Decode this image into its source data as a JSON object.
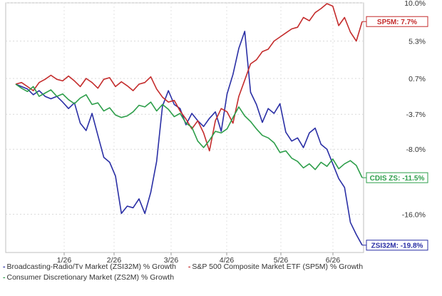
{
  "chart_data": {
    "type": "line",
    "x_tick_labels": [
      "1/26",
      "2/26",
      "3/26",
      "4/26",
      "5/26",
      "6/26"
    ],
    "y_tick_labels": [
      "10.0%",
      "5.3%",
      "0.7%",
      "-3.7%",
      "-8.0%",
      "-16.0%"
    ],
    "y_tick_values": [
      10.0,
      5.3,
      0.7,
      -3.7,
      -8.0,
      -16.0
    ],
    "ylim": [
      -20.7,
      10.0
    ],
    "grid": true,
    "legend_position": "bottom",
    "series": [
      {
        "name": "Broadcasting-Radio/Tv Market (ZSI32M) % Growth",
        "color": "#2a2fa5",
        "end_label": "ZSI32M: -19.8%",
        "points": [
          [
            0,
            0.0
          ],
          [
            1,
            -0.3
          ],
          [
            2,
            -0.6
          ],
          [
            3,
            -1.3
          ],
          [
            4,
            -0.8
          ],
          [
            5,
            -1.5
          ],
          [
            6,
            -1.8
          ],
          [
            7,
            -1.5
          ],
          [
            8,
            -2.2
          ],
          [
            9,
            -3.0
          ],
          [
            10,
            -2.3
          ],
          [
            11,
            -4.8
          ],
          [
            12,
            -5.7
          ],
          [
            13,
            -3.6
          ],
          [
            14,
            -6.3
          ],
          [
            15,
            -9.0
          ],
          [
            16,
            -9.6
          ],
          [
            17,
            -11.3
          ],
          [
            18,
            -15.9
          ],
          [
            19,
            -15.0
          ],
          [
            20,
            -15.2
          ],
          [
            21,
            -14.1
          ],
          [
            22,
            -15.9
          ],
          [
            23,
            -13.3
          ],
          [
            24,
            -9.5
          ],
          [
            25,
            -2.7
          ],
          [
            26,
            -0.8
          ],
          [
            27,
            -2.5
          ],
          [
            28,
            -3.0
          ],
          [
            29,
            -5.0
          ],
          [
            30,
            -3.6
          ],
          [
            31,
            -4.5
          ],
          [
            32,
            -5.2
          ],
          [
            33,
            -4.2
          ],
          [
            34,
            -3.4
          ],
          [
            35,
            -5.8
          ],
          [
            36,
            -1.2
          ],
          [
            37,
            1.2
          ],
          [
            38,
            4.4
          ],
          [
            39,
            6.5
          ],
          [
            40,
            -1.0
          ],
          [
            41,
            -2.5
          ],
          [
            42,
            -4.7
          ],
          [
            43,
            -3.0
          ],
          [
            44,
            -3.6
          ],
          [
            45,
            -2.4
          ],
          [
            46,
            -5.9
          ],
          [
            47,
            -7.0
          ],
          [
            48,
            -6.6
          ],
          [
            49,
            -7.8
          ],
          [
            50,
            -6.0
          ],
          [
            51,
            -5.4
          ],
          [
            52,
            -7.4
          ],
          [
            53,
            -8.0
          ],
          [
            54,
            -9.8
          ],
          [
            55,
            -11.6
          ],
          [
            56,
            -12.7
          ],
          [
            57,
            -17.0
          ],
          [
            58,
            -18.5
          ],
          [
            59,
            -19.8
          ]
        ]
      },
      {
        "name": "S&P 500 Composite Market ETF (SP5M) % Growth",
        "color": "#c42c2c",
        "end_label": "SP5M: 7.7%",
        "points": [
          [
            0,
            0.0
          ],
          [
            1,
            0.2
          ],
          [
            2,
            -0.3
          ],
          [
            3,
            -0.8
          ],
          [
            4,
            0.2
          ],
          [
            5,
            0.6
          ],
          [
            6,
            1.1
          ],
          [
            7,
            0.6
          ],
          [
            8,
            0.4
          ],
          [
            9,
            1.0
          ],
          [
            10,
            0.4
          ],
          [
            11,
            -0.3
          ],
          [
            12,
            0.7
          ],
          [
            13,
            0.2
          ],
          [
            14,
            -0.5
          ],
          [
            15,
            0.6
          ],
          [
            16,
            0.8
          ],
          [
            17,
            -0.3
          ],
          [
            18,
            0.3
          ],
          [
            19,
            -0.2
          ],
          [
            20,
            -0.8
          ],
          [
            21,
            0.0
          ],
          [
            22,
            0.2
          ],
          [
            23,
            0.9
          ],
          [
            24,
            -0.6
          ],
          [
            25,
            -1.6
          ],
          [
            26,
            -2.2
          ],
          [
            27,
            -2.0
          ],
          [
            28,
            -3.3
          ],
          [
            29,
            -4.3
          ],
          [
            30,
            -5.5
          ],
          [
            31,
            -4.5
          ],
          [
            32,
            -6.0
          ],
          [
            33,
            -8.2
          ],
          [
            34,
            -4.5
          ],
          [
            35,
            -3.0
          ],
          [
            36,
            -3.4
          ],
          [
            37,
            -4.8
          ],
          [
            38,
            -1.5
          ],
          [
            39,
            0.5
          ],
          [
            40,
            2.5
          ],
          [
            41,
            3.0
          ],
          [
            42,
            4.0
          ],
          [
            43,
            4.3
          ],
          [
            44,
            5.3
          ],
          [
            45,
            5.8
          ],
          [
            46,
            6.3
          ],
          [
            47,
            6.8
          ],
          [
            48,
            7.0
          ],
          [
            49,
            8.2
          ],
          [
            50,
            7.8
          ],
          [
            51,
            8.8
          ],
          [
            52,
            9.3
          ],
          [
            53,
            9.9
          ],
          [
            54,
            9.6
          ],
          [
            55,
            7.2
          ],
          [
            56,
            8.2
          ],
          [
            57,
            6.4
          ],
          [
            58,
            5.3
          ],
          [
            59,
            7.7
          ]
        ]
      },
      {
        "name": "Consumer Discretionary Market (ZS2M) % Growth",
        "color": "#2d9e4a",
        "end_label": "CDIS ZS: -11.5%",
        "points": [
          [
            0,
            0.0
          ],
          [
            1,
            -0.5
          ],
          [
            2,
            -0.9
          ],
          [
            3,
            -0.3
          ],
          [
            4,
            -1.5
          ],
          [
            5,
            -1.1
          ],
          [
            6,
            -0.7
          ],
          [
            7,
            -1.5
          ],
          [
            8,
            -1.2
          ],
          [
            9,
            -1.9
          ],
          [
            10,
            -2.4
          ],
          [
            11,
            -1.7
          ],
          [
            12,
            -1.3
          ],
          [
            13,
            -2.5
          ],
          [
            14,
            -2.3
          ],
          [
            15,
            -3.3
          ],
          [
            16,
            -2.9
          ],
          [
            17,
            -3.8
          ],
          [
            18,
            -4.1
          ],
          [
            19,
            -3.9
          ],
          [
            20,
            -3.4
          ],
          [
            21,
            -2.6
          ],
          [
            22,
            -2.8
          ],
          [
            23,
            -2.2
          ],
          [
            24,
            -3.3
          ],
          [
            25,
            -2.5
          ],
          [
            26,
            -3.1
          ],
          [
            27,
            -4.0
          ],
          [
            28,
            -3.6
          ],
          [
            29,
            -4.8
          ],
          [
            30,
            -5.3
          ],
          [
            31,
            -7.0
          ],
          [
            32,
            -7.8
          ],
          [
            33,
            -6.9
          ],
          [
            34,
            -5.8
          ],
          [
            35,
            -6.0
          ],
          [
            36,
            -5.5
          ],
          [
            37,
            -4.1
          ],
          [
            38,
            -2.8
          ],
          [
            39,
            -3.9
          ],
          [
            40,
            -4.6
          ],
          [
            41,
            -5.5
          ],
          [
            42,
            -6.3
          ],
          [
            43,
            -6.6
          ],
          [
            44,
            -7.2
          ],
          [
            45,
            -8.4
          ],
          [
            46,
            -8.2
          ],
          [
            47,
            -9.1
          ],
          [
            48,
            -9.5
          ],
          [
            49,
            -10.3
          ],
          [
            50,
            -9.8
          ],
          [
            51,
            -10.5
          ],
          [
            52,
            -9.6
          ],
          [
            53,
            -10.1
          ],
          [
            54,
            -9.2
          ],
          [
            55,
            -10.4
          ],
          [
            56,
            -9.8
          ],
          [
            57,
            -9.4
          ],
          [
            58,
            -10.0
          ],
          [
            59,
            -11.5
          ]
        ]
      }
    ]
  }
}
